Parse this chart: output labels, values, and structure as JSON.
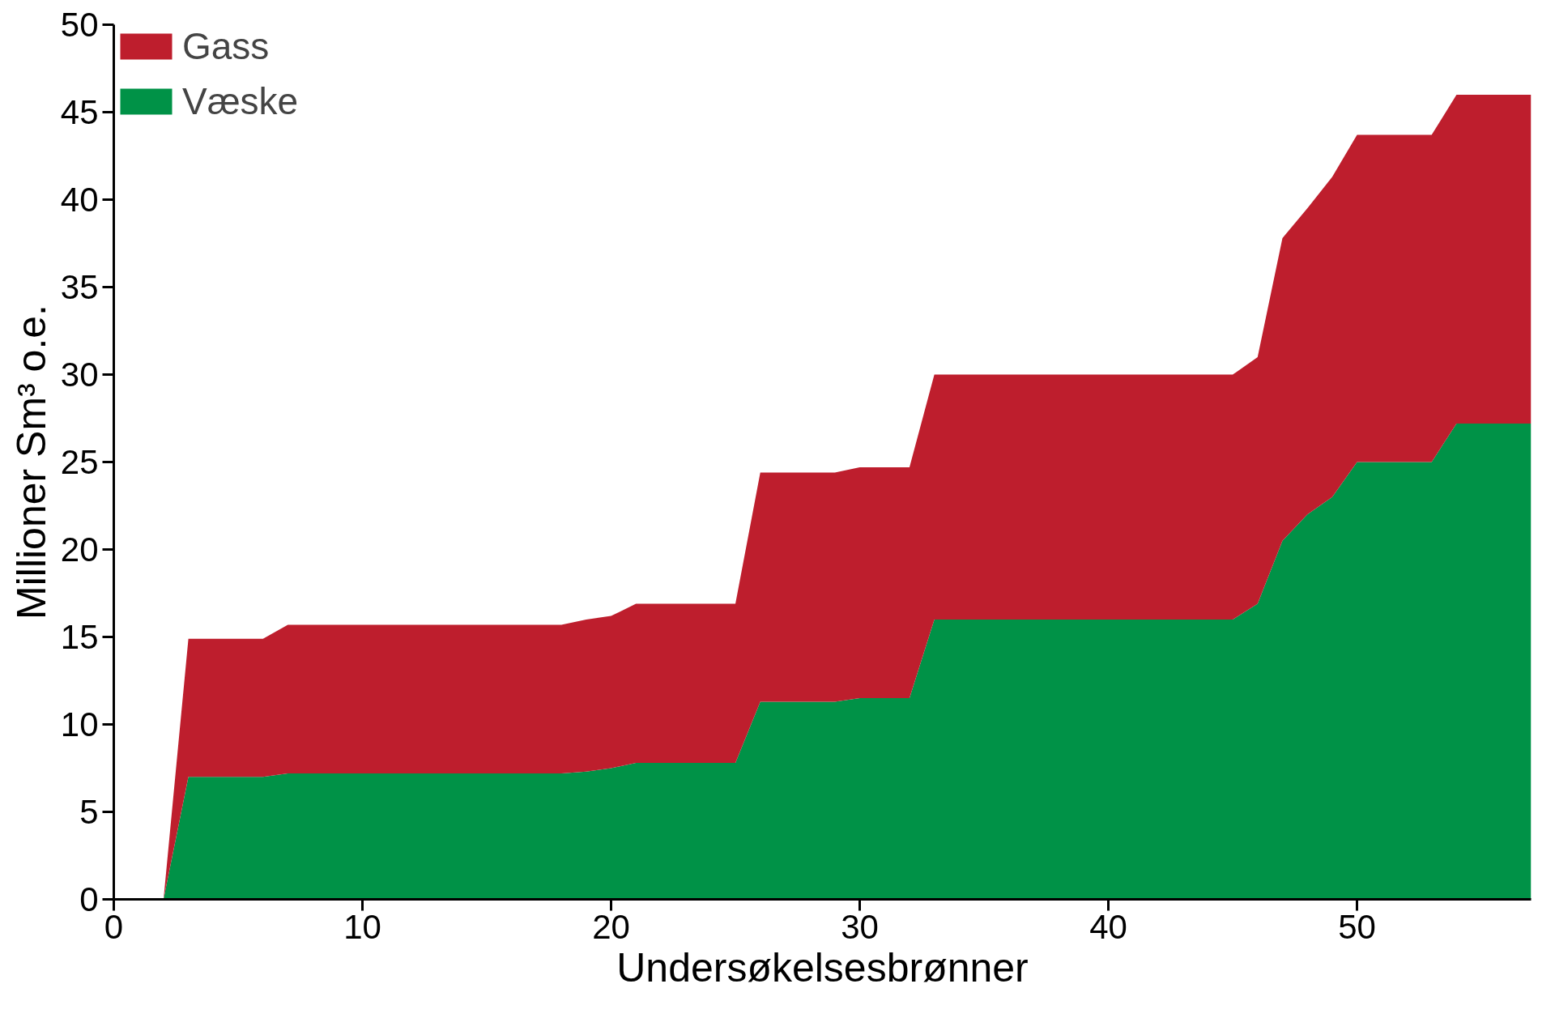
{
  "chart_data": {
    "type": "area",
    "stacked": true,
    "xlabel": "Undersøkelsesbrønner",
    "ylabel": "Millioner Sm³ o.e.",
    "x": [
      2,
      3,
      6,
      7,
      18,
      19,
      20,
      21,
      25,
      26,
      29,
      30,
      32,
      33,
      45,
      46,
      47,
      48,
      49,
      50,
      53,
      54,
      57
    ],
    "series": [
      {
        "name": "Væske",
        "color": "#009247",
        "values": [
          0,
          7.0,
          7.0,
          7.2,
          7.2,
          7.3,
          7.5,
          7.8,
          7.8,
          11.3,
          11.3,
          11.5,
          11.5,
          16.0,
          16.0,
          16.9,
          20.5,
          22.0,
          23.0,
          25.0,
          25.0,
          27.2,
          27.2
        ]
      },
      {
        "name": "Gass",
        "color": "#be1e2d",
        "values": [
          0,
          7.9,
          7.9,
          8.5,
          8.5,
          8.7,
          8.7,
          9.1,
          9.1,
          13.1,
          13.1,
          13.2,
          13.2,
          14.0,
          14.0,
          14.1,
          17.3,
          17.5,
          18.3,
          18.7,
          18.7,
          18.8,
          18.8
        ]
      }
    ],
    "xlim": [
      0,
      57
    ],
    "ylim": [
      0,
      50
    ],
    "xticks": [
      0,
      10,
      20,
      30,
      40,
      50
    ],
    "yticks": [
      0,
      5,
      10,
      15,
      20,
      25,
      30,
      35,
      40,
      45,
      50
    ],
    "legend": "top left",
    "grid": false
  }
}
